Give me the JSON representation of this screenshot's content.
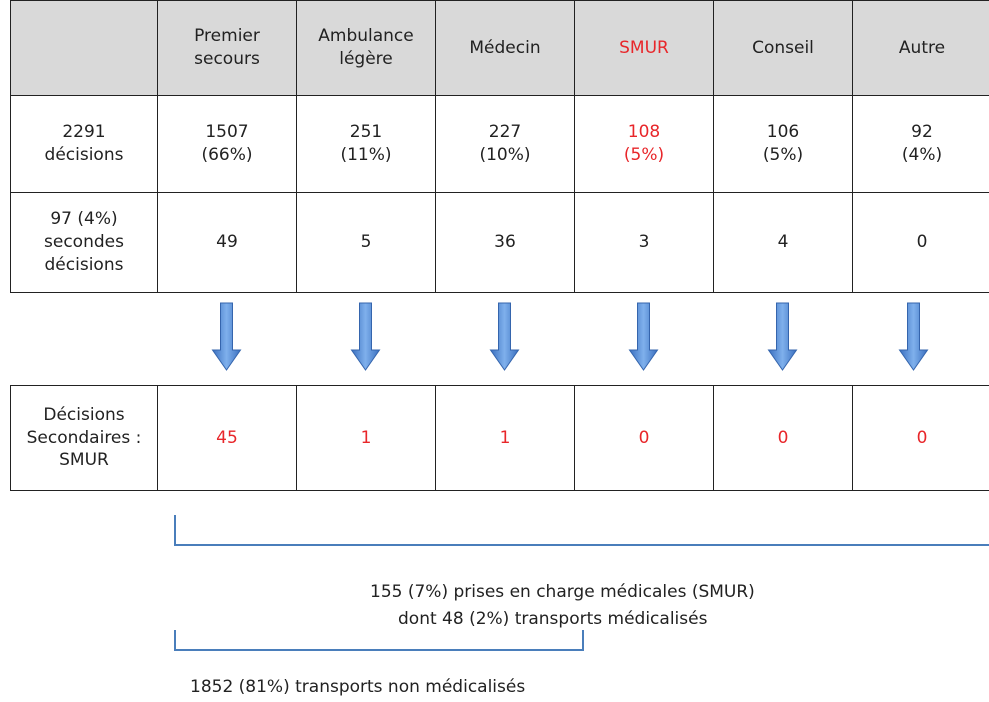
{
  "table": {
    "header": [
      "Premier\nsecours",
      "Ambulance\nlégère",
      "Médecin",
      "SMUR",
      "Conseil",
      "Autre"
    ],
    "rows": [
      {
        "label": "2291\ndécisions",
        "cells": [
          "1507\n(66%)",
          "251\n(11%)",
          "227\n(10%)",
          "108\n(5%)",
          "106\n(5%)",
          "92\n(4%)"
        ]
      },
      {
        "label": "97 (4%)\nsecondes\ndécisions",
        "cells": [
          "49",
          "5",
          "36",
          "3",
          "4",
          "0"
        ]
      }
    ]
  },
  "secondary": {
    "label": "Décisions\nSecondaires :\nSMUR",
    "cells": [
      "45",
      "1",
      "1",
      "0",
      "0",
      "0"
    ]
  },
  "notes": {
    "smur_total": "155 (7%) prises en charge médicales (SMUR)",
    "smur_transport": "dont 48 (2%) transports médicalisés",
    "non_medical": "1852 (81%) transports non médicalisés"
  }
}
